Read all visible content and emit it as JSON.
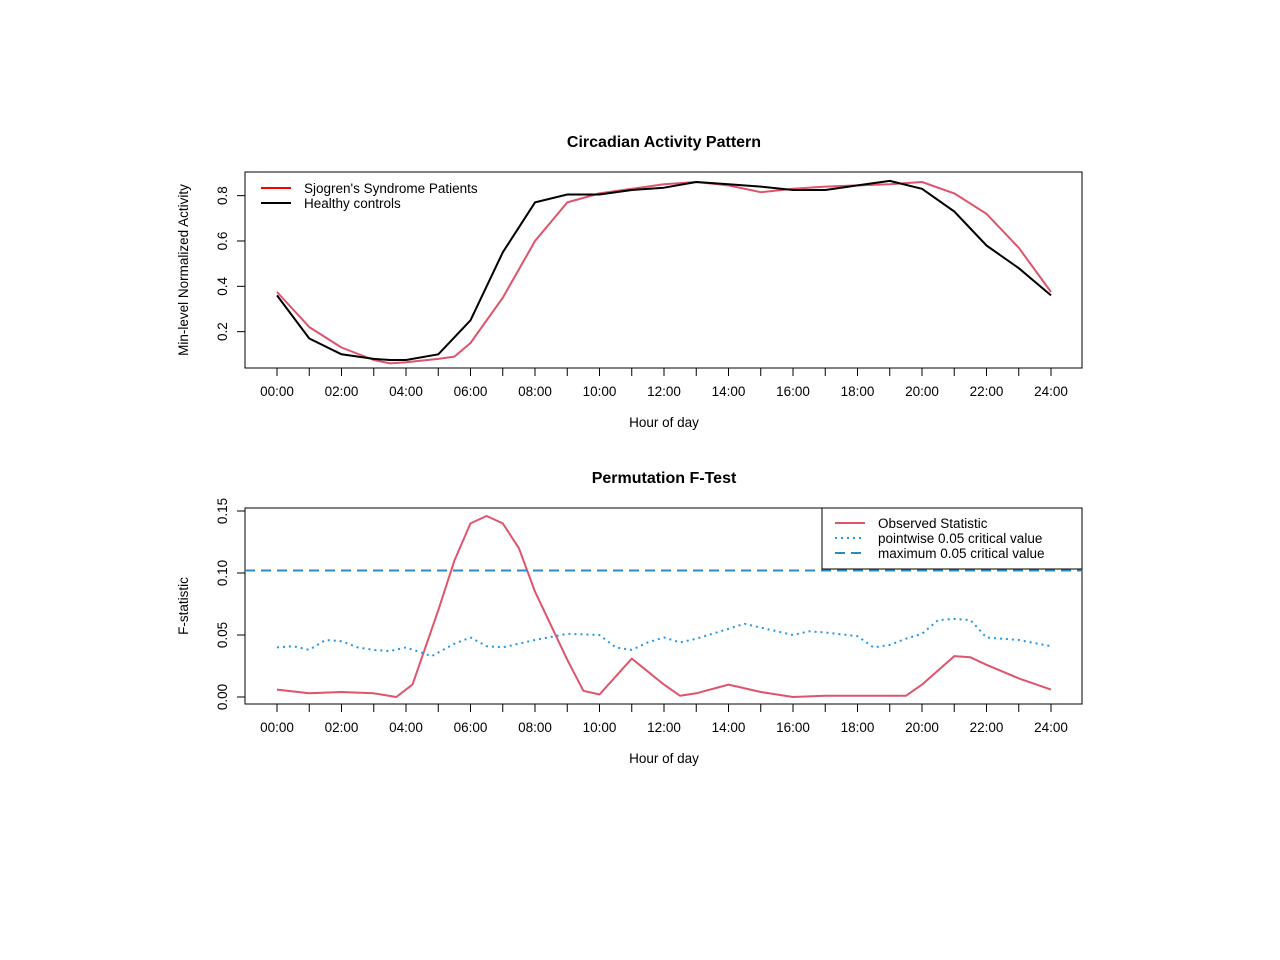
{
  "chart_data": [
    {
      "type": "line",
      "title": "Circadian Activity Pattern",
      "xlabel": "Hour of day",
      "ylabel": "Min-level Normalized Activity",
      "xlim": [
        0,
        24
      ],
      "ylim": [
        0.05,
        0.9
      ],
      "x_ticks": [
        "00:00",
        "02:00",
        "04:00",
        "06:00",
        "08:00",
        "10:00",
        "12:00",
        "14:00",
        "16:00",
        "18:00",
        "20:00",
        "22:00",
        "24:00"
      ],
      "y_ticks": [
        "0.2",
        "0.4",
        "0.6",
        "0.8"
      ],
      "y_tick_values": [
        0.2,
        0.4,
        0.6,
        0.8
      ],
      "legend_position": "top-left",
      "grid": false,
      "series": [
        {
          "name": "Sjogren's Syndrome Patients",
          "color": "#df536b",
          "style": "solid",
          "x": [
            0,
            1,
            2,
            3,
            3.5,
            4,
            5,
            5.5,
            6,
            7,
            8,
            9,
            10,
            11,
            12,
            13,
            14,
            15,
            16,
            17,
            18,
            19,
            20,
            21,
            22,
            23,
            24
          ],
          "y": [
            0.375,
            0.22,
            0.13,
            0.075,
            0.06,
            0.065,
            0.08,
            0.09,
            0.15,
            0.35,
            0.6,
            0.77,
            0.81,
            0.83,
            0.85,
            0.86,
            0.845,
            0.815,
            0.83,
            0.84,
            0.845,
            0.85,
            0.86,
            0.81,
            0.72,
            0.57,
            0.375
          ]
        },
        {
          "name": "Healthy controls",
          "color": "#000000",
          "style": "solid",
          "x": [
            0,
            1,
            2,
            3,
            3.5,
            4,
            5,
            6,
            7,
            8,
            9,
            10,
            11,
            12,
            13,
            14,
            15,
            16,
            17,
            18,
            19,
            20,
            21,
            22,
            23,
            24
          ],
          "y": [
            0.36,
            0.17,
            0.1,
            0.08,
            0.075,
            0.075,
            0.1,
            0.25,
            0.55,
            0.77,
            0.805,
            0.805,
            0.825,
            0.835,
            0.86,
            0.85,
            0.84,
            0.825,
            0.825,
            0.845,
            0.865,
            0.83,
            0.73,
            0.58,
            0.48,
            0.36
          ]
        }
      ],
      "legend_color_patients": "#ff0000"
    },
    {
      "type": "line",
      "title": "Permutation F-Test",
      "xlabel": "Hour of day",
      "ylabel": "F-statistic",
      "xlim": [
        0,
        24
      ],
      "ylim": [
        0,
        0.15
      ],
      "x_ticks": [
        "00:00",
        "02:00",
        "04:00",
        "06:00",
        "08:00",
        "10:00",
        "12:00",
        "14:00",
        "16:00",
        "18:00",
        "20:00",
        "22:00",
        "24:00"
      ],
      "y_ticks": [
        "0.00",
        "0.05",
        "0.10",
        "0.15"
      ],
      "y_tick_values": [
        0,
        0.05,
        0.1,
        0.15
      ],
      "legend_position": "top-right",
      "grid": false,
      "series": [
        {
          "name": "Observed Statistic",
          "color": "#df536b",
          "style": "solid",
          "x": [
            0,
            1,
            2,
            3,
            3.7,
            4.2,
            5,
            5.5,
            6,
            6.5,
            7,
            7.5,
            8,
            9,
            9.5,
            10,
            11,
            12,
            12.5,
            13,
            14,
            15,
            16,
            17,
            18,
            19,
            19.5,
            20,
            21,
            21.5,
            22,
            23,
            24
          ],
          "y": [
            0.006,
            0.003,
            0.004,
            0.003,
            0,
            0.01,
            0.07,
            0.11,
            0.14,
            0.146,
            0.14,
            0.12,
            0.085,
            0.03,
            0.005,
            0.002,
            0.031,
            0.01,
            0.001,
            0.003,
            0.01,
            0.004,
            0,
            0.001,
            0.001,
            0.001,
            0.001,
            0.01,
            0.033,
            0.032,
            0.026,
            0.015,
            0.006
          ]
        },
        {
          "name": "pointwise 0.05 critical value",
          "color": "#2297e6",
          "style": "dotted",
          "x": [
            0,
            0.5,
            1,
            1.5,
            2,
            2.5,
            3,
            3.5,
            4,
            4.8,
            5.5,
            6,
            6.5,
            7,
            8,
            9,
            10,
            10.5,
            11,
            11.5,
            12,
            12.5,
            13,
            14,
            14.5,
            15,
            16,
            16.5,
            17,
            18,
            18.5,
            19,
            19.5,
            20,
            20.5,
            21,
            21.5,
            22,
            23,
            24
          ],
          "y": [
            0.04,
            0.041,
            0.038,
            0.046,
            0.045,
            0.04,
            0.038,
            0.037,
            0.04,
            0.033,
            0.043,
            0.048,
            0.041,
            0.04,
            0.046,
            0.051,
            0.05,
            0.04,
            0.038,
            0.044,
            0.048,
            0.044,
            0.047,
            0.055,
            0.059,
            0.056,
            0.05,
            0.053,
            0.052,
            0.049,
            0.04,
            0.042,
            0.047,
            0.051,
            0.062,
            0.063,
            0.062,
            0.048,
            0.046,
            0.041
          ]
        },
        {
          "name": "maximum 0.05 critical value",
          "color": "#2e8bc0",
          "style": "dashed",
          "x": [
            0,
            24
          ],
          "y": [
            0.102,
            0.102
          ]
        }
      ]
    }
  ]
}
